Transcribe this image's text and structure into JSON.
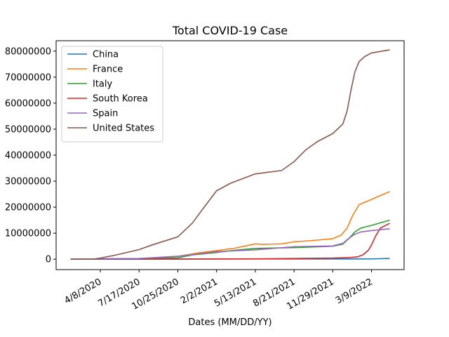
{
  "chart_data": {
    "type": "line",
    "title": "Total COVID-19 Case",
    "xlabel": "Dates (MM/DD/YY)",
    "ylabel": "",
    "x_range": [
      "2020-01-22",
      "2022-04-25"
    ],
    "ylim": [
      -4000000,
      84000000
    ],
    "x_ticks": [
      "4/8/2020",
      "7/17/2020",
      "10/25/2020",
      "2/2/2021",
      "5/13/2021",
      "8/21/2021",
      "11/29/2021",
      "3/9/2022"
    ],
    "y_ticks": [
      "0",
      "10000000",
      "20000000",
      "30000000",
      "40000000",
      "50000000",
      "60000000",
      "70000000",
      "80000000"
    ],
    "grid": false,
    "legend_position": "top-left",
    "series": [
      {
        "name": "China",
        "color": "#1f77b4",
        "points": [
          [
            "2020-01-22",
            0
          ],
          [
            "2020-04-08",
            82000
          ],
          [
            "2020-10-25",
            85000
          ],
          [
            "2021-05-13",
            91000
          ],
          [
            "2021-11-29",
            100000
          ],
          [
            "2022-03-09",
            115000
          ],
          [
            "2022-04-25",
            310000
          ]
        ]
      },
      {
        "name": "France",
        "color": "#ff7f0e",
        "points": [
          [
            "2020-01-22",
            0
          ],
          [
            "2020-03-15",
            5000
          ],
          [
            "2020-04-08",
            110000
          ],
          [
            "2020-07-17",
            210000
          ],
          [
            "2020-10-25",
            1100000
          ],
          [
            "2020-12-20",
            2500000
          ],
          [
            "2021-02-02",
            3300000
          ],
          [
            "2021-03-20",
            4200000
          ],
          [
            "2021-05-13",
            5900000
          ],
          [
            "2021-06-01",
            5700000
          ],
          [
            "2021-07-20",
            5900000
          ],
          [
            "2021-08-21",
            6700000
          ],
          [
            "2021-10-01",
            7100000
          ],
          [
            "2021-11-29",
            7900000
          ],
          [
            "2021-12-20",
            9200000
          ],
          [
            "2022-01-05",
            12000000
          ],
          [
            "2022-01-20",
            17000000
          ],
          [
            "2022-02-05",
            21000000
          ],
          [
            "2022-03-09",
            23000000
          ],
          [
            "2022-04-01",
            24500000
          ],
          [
            "2022-04-25",
            26000000
          ]
        ]
      },
      {
        "name": "Italy",
        "color": "#2ca02c",
        "points": [
          [
            "2020-01-22",
            0
          ],
          [
            "2020-03-15",
            25000
          ],
          [
            "2020-04-08",
            140000
          ],
          [
            "2020-07-17",
            240000
          ],
          [
            "2020-10-25",
            550000
          ],
          [
            "2020-11-30",
            1600000
          ],
          [
            "2021-02-02",
            2600000
          ],
          [
            "2021-03-20",
            3400000
          ],
          [
            "2021-05-13",
            4150000
          ],
          [
            "2021-08-21",
            4450000
          ],
          [
            "2021-11-29",
            5000000
          ],
          [
            "2021-12-25",
            5800000
          ],
          [
            "2022-01-10",
            8000000
          ],
          [
            "2022-01-25",
            10500000
          ],
          [
            "2022-02-10",
            12000000
          ],
          [
            "2022-03-09",
            13000000
          ],
          [
            "2022-04-25",
            15000000
          ]
        ]
      },
      {
        "name": "South Korea",
        "color": "#d62728",
        "points": [
          [
            "2020-01-22",
            0
          ],
          [
            "2020-04-08",
            10000
          ],
          [
            "2020-10-25",
            26000
          ],
          [
            "2021-05-13",
            130000
          ],
          [
            "2021-11-29",
            440000
          ],
          [
            "2022-01-10",
            650000
          ],
          [
            "2022-02-01",
            900000
          ],
          [
            "2022-02-15",
            1700000
          ],
          [
            "2022-03-01",
            3500000
          ],
          [
            "2022-03-09",
            5500000
          ],
          [
            "2022-03-20",
            9000000
          ],
          [
            "2022-04-01",
            12000000
          ],
          [
            "2022-04-25",
            13800000
          ]
        ]
      },
      {
        "name": "Spain",
        "color": "#9467bd",
        "points": [
          [
            "2020-01-22",
            0
          ],
          [
            "2020-03-15",
            7000
          ],
          [
            "2020-04-08",
            150000
          ],
          [
            "2020-07-17",
            260000
          ],
          [
            "2020-10-25",
            1100000
          ],
          [
            "2021-02-02",
            2900000
          ],
          [
            "2021-05-13",
            3600000
          ],
          [
            "2021-08-21",
            4800000
          ],
          [
            "2021-11-29",
            5100000
          ],
          [
            "2021-12-25",
            6100000
          ],
          [
            "2022-01-10",
            8100000
          ],
          [
            "2022-01-25",
            9600000
          ],
          [
            "2022-02-10",
            10500000
          ],
          [
            "2022-03-09",
            11000000
          ],
          [
            "2022-04-25",
            11700000
          ]
        ]
      },
      {
        "name": "United States",
        "color": "#8c564b",
        "points": [
          [
            "2020-01-22",
            0
          ],
          [
            "2020-03-20",
            20000
          ],
          [
            "2020-04-08",
            430000
          ],
          [
            "2020-05-15",
            1500000
          ],
          [
            "2020-07-17",
            3700000
          ],
          [
            "2020-08-20",
            5500000
          ],
          [
            "2020-10-25",
            8600000
          ],
          [
            "2020-12-01",
            13800000
          ],
          [
            "2021-01-01",
            20000000
          ],
          [
            "2021-02-02",
            26300000
          ],
          [
            "2021-03-10",
            29200000
          ],
          [
            "2021-05-13",
            32800000
          ],
          [
            "2021-07-20",
            34100000
          ],
          [
            "2021-08-21",
            37500000
          ],
          [
            "2021-09-20",
            42000000
          ],
          [
            "2021-10-20",
            45200000
          ],
          [
            "2021-11-29",
            48300000
          ],
          [
            "2021-12-25",
            52000000
          ],
          [
            "2022-01-05",
            57000000
          ],
          [
            "2022-01-15",
            65000000
          ],
          [
            "2022-01-25",
            72000000
          ],
          [
            "2022-02-05",
            76000000
          ],
          [
            "2022-02-20",
            78000000
          ],
          [
            "2022-03-09",
            79300000
          ],
          [
            "2022-04-25",
            80500000
          ]
        ]
      }
    ]
  }
}
